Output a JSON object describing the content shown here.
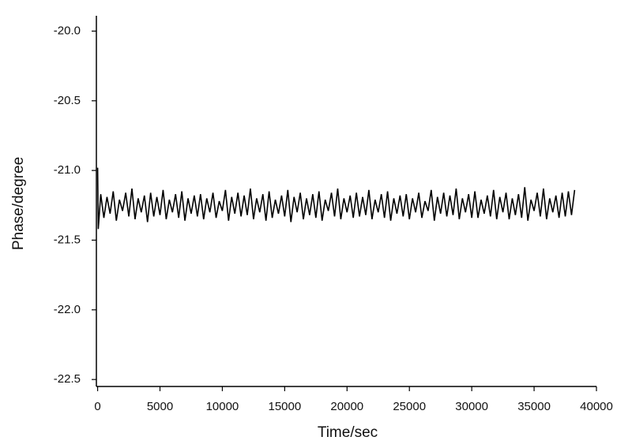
{
  "chart_data": {
    "type": "line",
    "x_label": "Time/sec",
    "y_label": "Phase/degree",
    "xlim": [
      -100,
      40000
    ],
    "ylim": [
      -22.55,
      -19.89
    ],
    "xticks": [
      0,
      5000,
      10000,
      15000,
      20000,
      25000,
      30000,
      35000,
      40000
    ],
    "yticks": [
      {
        "value": -20.0,
        "label": "-20.0"
      },
      -20.5,
      {
        "value": -21.0,
        "label": "-21.0"
      },
      -21.5,
      {
        "value": -22.0,
        "label": "-22.0"
      },
      -22.5
    ],
    "color": "#000000",
    "x": [
      0,
      50,
      250,
      500,
      750,
      1000,
      1250,
      1500,
      1750,
      2000,
      2250,
      2500,
      2750,
      3000,
      3250,
      3500,
      3750,
      4000,
      4250,
      4500,
      4750,
      5000,
      5250,
      5500,
      5750,
      6000,
      6250,
      6500,
      6750,
      7000,
      7250,
      7500,
      7750,
      8000,
      8250,
      8500,
      8750,
      9000,
      9250,
      9500,
      9750,
      10000,
      10250,
      10500,
      10750,
      11000,
      11250,
      11500,
      11750,
      12000,
      12250,
      12500,
      12750,
      13000,
      13250,
      13500,
      13750,
      14000,
      14250,
      14500,
      14750,
      15000,
      15250,
      15500,
      15750,
      16000,
      16250,
      16500,
      16750,
      17000,
      17250,
      17500,
      17750,
      18000,
      18250,
      18500,
      18750,
      19000,
      19250,
      19500,
      19750,
      20000,
      20250,
      20500,
      20750,
      21000,
      21250,
      21500,
      21750,
      22000,
      22250,
      22500,
      22750,
      23000,
      23250,
      23500,
      23750,
      24000,
      24250,
      24500,
      24750,
      25000,
      25250,
      25500,
      25750,
      26000,
      26250,
      26500,
      26750,
      27000,
      27250,
      27500,
      27750,
      28000,
      28250,
      28500,
      28750,
      29000,
      29250,
      29500,
      29750,
      30000,
      30250,
      30500,
      30750,
      31000,
      31250,
      31500,
      31750,
      32000,
      32250,
      32500,
      32750,
      33000,
      33250,
      33500,
      33750,
      34000,
      34250,
      34500,
      34750,
      35000,
      35250,
      35500,
      35750,
      36000,
      36250,
      36500,
      36750,
      37000,
      37250,
      37500,
      37750,
      38000,
      38250
    ],
    "values": [
      -20.98,
      -21.42,
      -21.17,
      -21.34,
      -21.19,
      -21.31,
      -21.15,
      -21.36,
      -21.21,
      -21.29,
      -21.16,
      -21.33,
      -21.13,
      -21.35,
      -21.2,
      -21.3,
      -21.18,
      -21.37,
      -21.16,
      -21.33,
      -21.19,
      -21.32,
      -21.14,
      -21.35,
      -21.21,
      -21.3,
      -21.17,
      -21.34,
      -21.15,
      -21.36,
      -21.2,
      -21.31,
      -21.18,
      -21.33,
      -21.17,
      -21.35,
      -21.2,
      -21.3,
      -21.16,
      -21.34,
      -21.22,
      -21.29,
      -21.14,
      -21.36,
      -21.19,
      -21.31,
      -21.16,
      -21.33,
      -21.18,
      -21.32,
      -21.13,
      -21.35,
      -21.2,
      -21.3,
      -21.17,
      -21.36,
      -21.15,
      -21.34,
      -21.21,
      -21.31,
      -21.18,
      -21.33,
      -21.14,
      -21.37,
      -21.19,
      -21.3,
      -21.16,
      -21.35,
      -21.2,
      -21.32,
      -21.17,
      -21.34,
      -21.15,
      -21.36,
      -21.21,
      -21.29,
      -21.16,
      -21.33,
      -21.13,
      -21.35,
      -21.2,
      -21.3,
      -21.18,
      -21.34,
      -21.16,
      -21.33,
      -21.19,
      -21.32,
      -21.14,
      -21.35,
      -21.21,
      -21.3,
      -21.17,
      -21.34,
      -21.15,
      -21.36,
      -21.2,
      -21.31,
      -21.18,
      -21.33,
      -21.17,
      -21.35,
      -21.2,
      -21.3,
      -21.16,
      -21.34,
      -21.22,
      -21.29,
      -21.14,
      -21.36,
      -21.19,
      -21.31,
      -21.16,
      -21.33,
      -21.18,
      -21.32,
      -21.13,
      -21.35,
      -21.2,
      -21.3,
      -21.17,
      -21.34,
      -21.15,
      -21.34,
      -21.21,
      -21.31,
      -21.18,
      -21.33,
      -21.14,
      -21.35,
      -21.19,
      -21.3,
      -21.16,
      -21.35,
      -21.2,
      -21.32,
      -21.17,
      -21.34,
      -21.12,
      -21.36,
      -21.21,
      -21.29,
      -21.16,
      -21.33,
      -21.13,
      -21.35,
      -21.2,
      -21.3,
      -21.18,
      -21.34,
      -21.16,
      -21.33,
      -21.15,
      -21.32,
      -21.14
    ]
  }
}
